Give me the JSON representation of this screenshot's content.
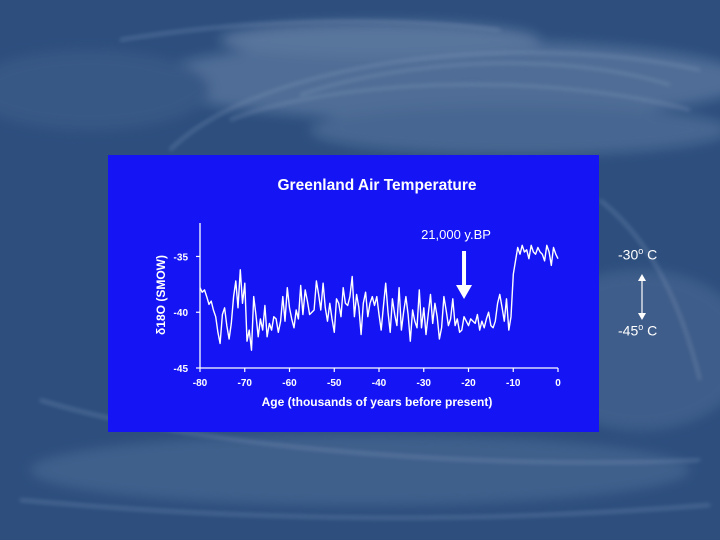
{
  "colors": {
    "background": "#2e4f7e",
    "panel": "#1414f5",
    "foreground": "#ffffff"
  },
  "chart_data": {
    "type": "line",
    "title": "Greenland Air Temperature",
    "xlabel": "Age (thousands of years before present)",
    "ylabel": "δ18O (SMOW)",
    "xlim": [
      -80,
      0
    ],
    "ylim": [
      -45,
      -32
    ],
    "x_ticks": [
      "-80",
      "-70",
      "-60",
      "-50",
      "-40",
      "-30",
      "-20",
      "-10",
      "0"
    ],
    "y_ticks": [
      "-35",
      "-40",
      "-45"
    ],
    "grid": false,
    "series": [
      {
        "x": [
          -80,
          -79.5,
          -79,
          -78.5,
          -78,
          -77.5,
          -77,
          -76.5,
          -76,
          -75.5,
          -75,
          -74.5,
          -74,
          -73.5,
          -73,
          -72.5,
          -72,
          -71.5,
          -71,
          -70.5,
          -70,
          -69.5,
          -69,
          -68.5,
          -68,
          -67.5,
          -67,
          -66.5,
          -66,
          -65.5,
          -65,
          -64.5,
          -64,
          -63.5,
          -63,
          -62.5,
          -62,
          -61.5,
          -61,
          -60.5,
          -60,
          -59.5,
          -59,
          -58.5,
          -58,
          -57.5,
          -57,
          -56.5,
          -56,
          -55.5,
          -55,
          -54.5,
          -54,
          -53.5,
          -53,
          -52.5,
          -52,
          -51.5,
          -51,
          -50.5,
          -50,
          -49.5,
          -49,
          -48.5,
          -48,
          -47.5,
          -47,
          -46.5,
          -46,
          -45.5,
          -45,
          -44.5,
          -44,
          -43.5,
          -43,
          -42.5,
          -42,
          -41.5,
          -41,
          -40.5,
          -40,
          -39.5,
          -39,
          -38.5,
          -38,
          -37.5,
          -37,
          -36.5,
          -36,
          -35.5,
          -35,
          -34.5,
          -34,
          -33.5,
          -33,
          -32.5,
          -32,
          -31.5,
          -31,
          -30.5,
          -30,
          -29.5,
          -29,
          -28.5,
          -28,
          -27.5,
          -27,
          -26.5,
          -26,
          -25.5,
          -25,
          -24.5,
          -24,
          -23.5,
          -23,
          -22.5,
          -22,
          -21.5,
          -21,
          -20.5,
          -20,
          -19.5,
          -19,
          -18.5,
          -18,
          -17.5,
          -17,
          -16.5,
          -16,
          -15.5,
          -15,
          -14.5,
          -14,
          -13.5,
          -13,
          -12.5,
          -12,
          -11.5,
          -11,
          -10.5,
          -10,
          -9.5,
          -9,
          -8.5,
          -8,
          -7.5,
          -7,
          -6.5,
          -6,
          -5.5,
          -5,
          -4.5,
          -4,
          -3.5,
          -3,
          -2.5,
          -2,
          -1.5,
          -1,
          -0.5,
          0
        ],
        "y": [
          -37.8,
          -38.2,
          -38.0,
          -38.6,
          -39.3,
          -39.0,
          -39.8,
          -40.4,
          -41.8,
          -42.8,
          -40.2,
          -39.6,
          -41.2,
          -42.4,
          -41.0,
          -38.6,
          -37.2,
          -39.6,
          -36.2,
          -39.2,
          -37.4,
          -42.6,
          -41.6,
          -43.4,
          -38.6,
          -40.2,
          -42.2,
          -40.6,
          -41.6,
          -39.4,
          -42.2,
          -41.0,
          -41.6,
          -40.4,
          -40.6,
          -41.8,
          -40.8,
          -38.6,
          -40.8,
          -37.8,
          -39.6,
          -40.6,
          -41.4,
          -39.8,
          -40.6,
          -37.6,
          -40.2,
          -38.0,
          -39.0,
          -40.2,
          -40.0,
          -39.8,
          -37.2,
          -38.4,
          -39.8,
          -37.4,
          -39.6,
          -40.8,
          -39.2,
          -40.6,
          -41.8,
          -38.8,
          -39.2,
          -40.4,
          -37.8,
          -39.2,
          -39.4,
          -38.6,
          -36.8,
          -40.4,
          -38.4,
          -39.6,
          -42.0,
          -39.2,
          -38.2,
          -40.4,
          -39.2,
          -38.6,
          -39.4,
          -38.6,
          -40.2,
          -41.6,
          -39.4,
          -37.4,
          -40.0,
          -41.8,
          -38.8,
          -40.2,
          -41.2,
          -37.8,
          -41.6,
          -40.0,
          -38.6,
          -40.2,
          -42.6,
          -39.8,
          -40.8,
          -41.4,
          -38.0,
          -41.4,
          -39.6,
          -42.0,
          -40.2,
          -38.4,
          -41.0,
          -39.2,
          -40.4,
          -42.4,
          -41.4,
          -38.6,
          -39.8,
          -41.2,
          -40.6,
          -38.8,
          -41.2,
          -40.6,
          -41.8,
          -41.6,
          -40.4,
          -40.8,
          -41.2,
          -40.6,
          -40.8,
          -41.0,
          -40.2,
          -41.6,
          -40.8,
          -41.4,
          -40.6,
          -40.0,
          -41.2,
          -41.4,
          -40.8,
          -39.2,
          -38.4,
          -39.6,
          -40.8,
          -38.8,
          -41.6,
          -40.4,
          -36.6,
          -35.4,
          -34.2,
          -34.8,
          -34.0,
          -34.6,
          -34.4,
          -35.2,
          -34.0,
          -34.6,
          -34.8,
          -34.2,
          -34.6,
          -34.8,
          -35.4,
          -34.0,
          -34.6,
          -35.8,
          -34.2,
          -34.8,
          -35.2
        ]
      }
    ],
    "annotations": {
      "arrow_label": "21,000 y.BP",
      "arrow_x": -21,
      "scale_top": "-30",
      "scale_bottom": "-45",
      "degree_mark": "o",
      "unit": "C"
    }
  }
}
